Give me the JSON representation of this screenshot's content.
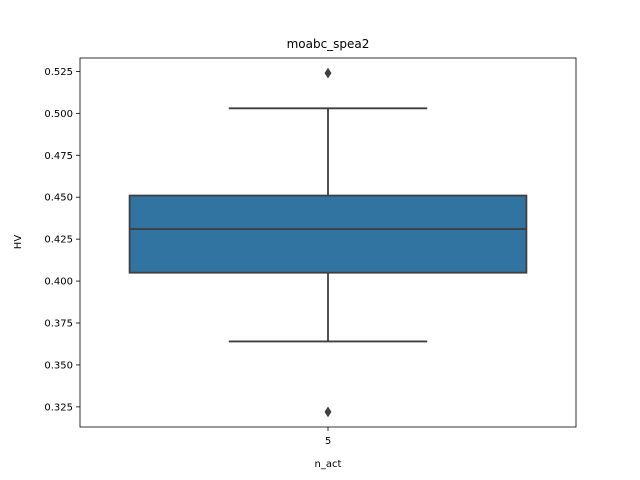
{
  "chart_data": {
    "type": "box",
    "title": "moabc_spea2",
    "xlabel": "n_act",
    "ylabel": "HV",
    "categories": [
      "5"
    ],
    "series": [
      {
        "stats": {
          "whisker_low": 0.364,
          "q1": 0.405,
          "median": 0.431,
          "q3": 0.451,
          "whisker_high": 0.503
        },
        "outliers": [
          0.524,
          0.322
        ]
      }
    ],
    "ylim": [
      0.313,
      0.533
    ],
    "yticks": [
      0.325,
      0.35,
      0.375,
      0.4,
      0.425,
      0.45,
      0.475,
      0.5,
      0.525
    ],
    "ytick_labels": [
      "0.325",
      "0.350",
      "0.375",
      "0.400",
      "0.425",
      "0.450",
      "0.475",
      "0.500",
      "0.525"
    ],
    "grid": false,
    "box_color": "#3274a1",
    "line_color": "#3f3f3f"
  }
}
